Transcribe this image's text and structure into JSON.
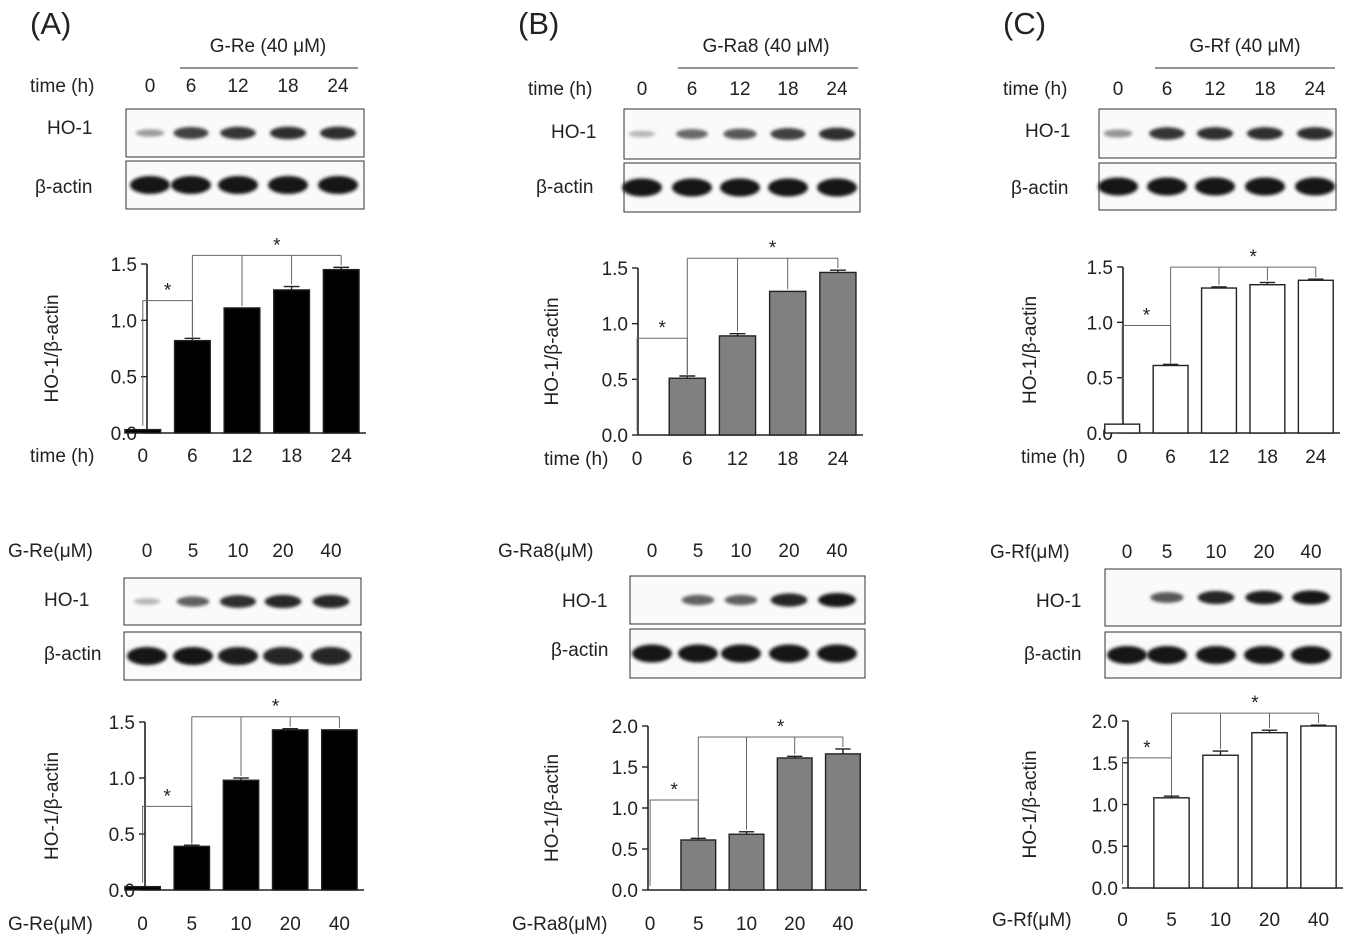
{
  "panels": [
    {
      "label": "(A)",
      "time_blot": {
        "treatment_header": "G-Re (40 μM)",
        "axis_label": "time (h)",
        "lanes": [
          "0",
          "6",
          "12",
          "18",
          "24"
        ],
        "rows": [
          "HO-1",
          "β-actin"
        ],
        "band_intensity": {
          "HO-1": [
            0.2,
            0.75,
            0.8,
            0.85,
            0.85
          ],
          "β-actin": [
            1,
            1,
            1,
            1,
            1
          ]
        }
      },
      "dose_blot": {
        "axis_label": "G-Re(μM)",
        "lanes": [
          "0",
          "5",
          "10",
          "20",
          "40"
        ],
        "rows": [
          "HO-1",
          "β-actin"
        ],
        "band_intensity": {
          "HO-1": [
            0.05,
            0.55,
            0.85,
            0.9,
            0.9
          ],
          "β-actin": [
            1,
            1,
            0.95,
            0.9,
            0.9
          ]
        }
      }
    },
    {
      "label": "(B)",
      "time_blot": {
        "treatment_header": "G-Ra8 (40 μM)",
        "axis_label": "time (h)",
        "lanes": [
          "0",
          "6",
          "12",
          "18",
          "24"
        ],
        "rows": [
          "HO-1",
          "β-actin"
        ],
        "band_intensity": {
          "HO-1": [
            0.05,
            0.5,
            0.6,
            0.75,
            0.85
          ],
          "β-actin": [
            1,
            1,
            1,
            1,
            1
          ]
        }
      },
      "dose_blot": {
        "axis_label": "G-Ra8(μM)",
        "lanes": [
          "0",
          "5",
          "10",
          "20",
          "40"
        ],
        "rows": [
          "HO-1",
          "β-actin"
        ],
        "band_intensity": {
          "HO-1": [
            0,
            0.55,
            0.55,
            0.9,
            1
          ],
          "β-actin": [
            1,
            1,
            1,
            1,
            1
          ]
        }
      }
    },
    {
      "label": "(C)",
      "time_blot": {
        "treatment_header": "G-Rf (40 μM)",
        "axis_label": "time (h)",
        "lanes": [
          "0",
          "6",
          "12",
          "18",
          "24"
        ],
        "rows": [
          "HO-1",
          "β-actin"
        ],
        "band_intensity": {
          "HO-1": [
            0.25,
            0.8,
            0.85,
            0.85,
            0.85
          ],
          "β-actin": [
            1,
            1,
            1,
            1,
            1
          ]
        }
      },
      "dose_blot": {
        "axis_label": "G-Rf(μM)",
        "lanes": [
          "0",
          "5",
          "10",
          "20",
          "40"
        ],
        "rows": [
          "HO-1",
          "β-actin"
        ],
        "band_intensity": {
          "HO-1": [
            0,
            0.6,
            0.9,
            0.95,
            1
          ],
          "β-actin": [
            1,
            1,
            1,
            1,
            1
          ]
        }
      }
    }
  ],
  "chart_data": [
    {
      "id": "A-time",
      "type": "bar",
      "panel": "(A)",
      "categories": [
        "0",
        "6",
        "12",
        "18",
        "24"
      ],
      "values": [
        0.03,
        0.82,
        1.11,
        1.27,
        1.45
      ],
      "errors": [
        0,
        0.02,
        0,
        0.03,
        0.02
      ],
      "ylabel": "HO-1/β-actin",
      "xlabel": "time (h)",
      "ylim": [
        0,
        1.5
      ],
      "yticks": [
        "0.0",
        "0.5",
        "1.0",
        "1.5"
      ],
      "bar_color": "#000000",
      "significance": {
        "marker": "*",
        "pairs": [
          [
            "0",
            "6"
          ],
          [
            "6",
            "24"
          ]
        ]
      }
    },
    {
      "id": "A-dose",
      "type": "bar",
      "panel": "(A)",
      "categories": [
        "0",
        "5",
        "10",
        "20",
        "40"
      ],
      "values": [
        0.03,
        0.39,
        0.98,
        1.43,
        1.43
      ],
      "errors": [
        0,
        0.01,
        0.02,
        0.01,
        0
      ],
      "ylabel": "HO-1/β-actin",
      "xlabel": "G-Re(μM)",
      "ylim": [
        0,
        1.5
      ],
      "yticks": [
        "0.0",
        "0.5",
        "1.0",
        "1.5"
      ],
      "bar_color": "#000000",
      "significance": {
        "marker": "*",
        "pairs": [
          [
            "0",
            "5"
          ],
          [
            "5",
            "40"
          ]
        ]
      }
    },
    {
      "id": "B-time",
      "type": "bar",
      "panel": "(B)",
      "categories": [
        "0",
        "6",
        "12",
        "18",
        "24"
      ],
      "values": [
        0,
        0.51,
        0.89,
        1.29,
        1.46
      ],
      "errors": [
        0,
        0.02,
        0.02,
        0,
        0.02
      ],
      "ylabel": "HO-1/β-actin",
      "xlabel": "time (h)",
      "ylim": [
        0,
        1.5
      ],
      "yticks": [
        "0.0",
        "0.5",
        "1.0",
        "1.5"
      ],
      "bar_color": "#808080",
      "significance": {
        "marker": "*",
        "pairs": [
          [
            "0",
            "6"
          ],
          [
            "6",
            "24"
          ]
        ]
      }
    },
    {
      "id": "B-dose",
      "type": "bar",
      "panel": "(B)",
      "categories": [
        "0",
        "5",
        "10",
        "20",
        "40"
      ],
      "values": [
        0,
        0.61,
        0.68,
        1.61,
        1.66
      ],
      "errors": [
        0,
        0.02,
        0.03,
        0.02,
        0.06
      ],
      "ylabel": "HO-1/β-actin",
      "xlabel": "G-Ra8(μM)",
      "ylim": [
        0,
        2.0
      ],
      "yticks": [
        "0.0",
        "0.5",
        "1.0",
        "1.5",
        "2.0"
      ],
      "bar_color": "#808080",
      "significance": {
        "marker": "*",
        "pairs": [
          [
            "0",
            "5"
          ],
          [
            "5",
            "40"
          ]
        ]
      }
    },
    {
      "id": "C-time",
      "type": "bar",
      "panel": "(C)",
      "categories": [
        "0",
        "6",
        "12",
        "18",
        "24"
      ],
      "values": [
        0.08,
        0.61,
        1.31,
        1.34,
        1.38
      ],
      "errors": [
        0,
        0.01,
        0.01,
        0.02,
        0.01
      ],
      "ylabel": "HO-1/β-actin",
      "xlabel": "time (h)",
      "ylim": [
        0,
        1.5
      ],
      "yticks": [
        "0.0",
        "0.5",
        "1.0",
        "1.5"
      ],
      "bar_color": "#ffffff",
      "significance": {
        "marker": "*",
        "pairs": [
          [
            "0",
            "6"
          ],
          [
            "6",
            "24"
          ]
        ]
      }
    },
    {
      "id": "C-dose",
      "type": "bar",
      "panel": "(C)",
      "categories": [
        "0",
        "5",
        "10",
        "20",
        "40"
      ],
      "values": [
        0,
        1.08,
        1.59,
        1.86,
        1.94
      ],
      "errors": [
        0,
        0.02,
        0.05,
        0.03,
        0.01
      ],
      "ylabel": "HO-1/β-actin",
      "xlabel": "G-Rf(μM)",
      "ylim": [
        0,
        2.0
      ],
      "yticks": [
        "0.0",
        "0.5",
        "1.0",
        "1.5",
        "2.0"
      ],
      "bar_color": "#ffffff",
      "significance": {
        "marker": "*",
        "pairs": [
          [
            "0",
            "5"
          ],
          [
            "5",
            "40"
          ]
        ]
      }
    }
  ]
}
